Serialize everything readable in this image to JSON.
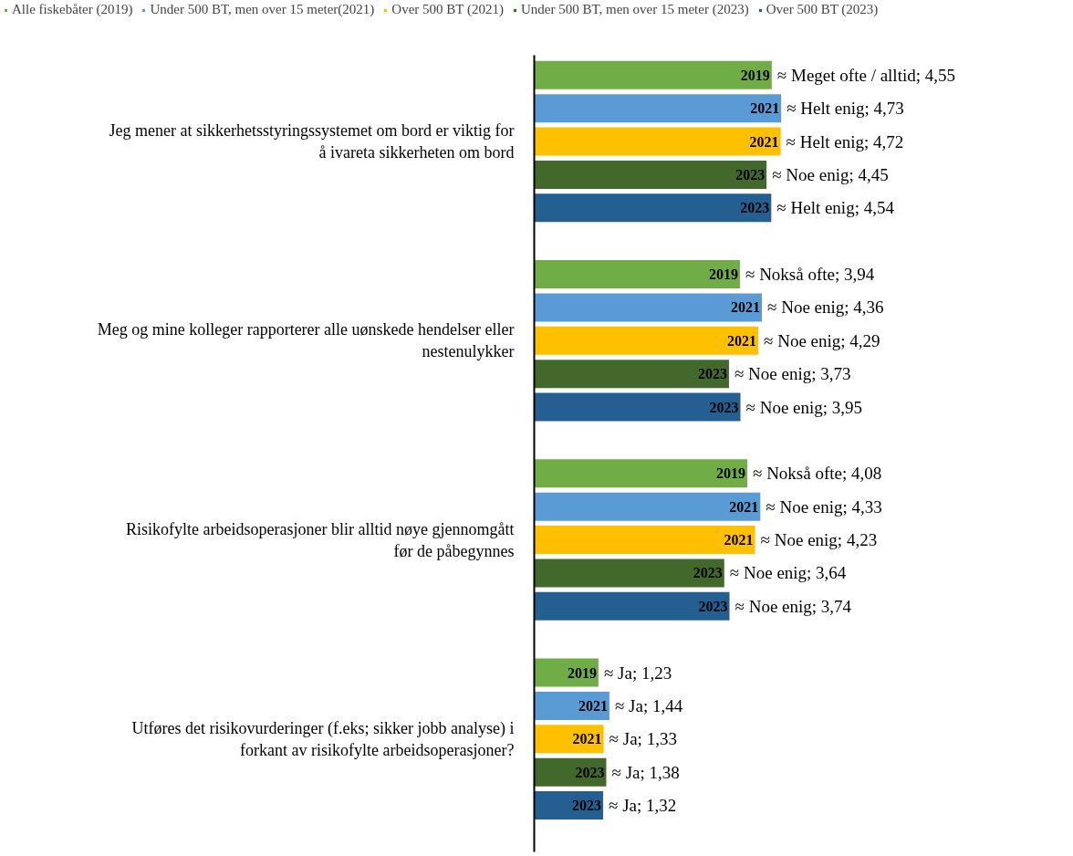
{
  "chart_data": {
    "type": "bar",
    "orientation": "horizontal",
    "legend": "top",
    "tick_labels": "y",
    "grid": false,
    "categories": [
      "Jeg mener at sikkerhetsstyringssystemet om bord er viktig for å ivareta sikkerheten om bord",
      "Meg og mine kolleger rapporterer alle uønskede hendelser eller nestenulykker",
      "Risikofylte arbeidsoperasjoner blir alltid nøye gjennomgått før de påbegynnes",
      "Utføres det risikovurderinger (f.eks; sikker jobb analyse) i forkant av risikofylte arbeidsoperasjoner?"
    ],
    "series": [
      {
        "name": "Alle fiskebåter (2019)",
        "color": "#70ad47",
        "values": [
          4.55,
          3.94,
          4.08,
          1.23
        ],
        "value_labels": [
          "2019 ≈ Meget ofte / alltid; 4,55",
          "2019 ≈ Nokså ofte; 3,94",
          "2019 ≈ Nokså ofte; 4,08",
          "2019 ≈ Ja; 1,23"
        ]
      },
      {
        "name": "Under 500 BT, men over 15 meter(2021)",
        "color": "#5b9bd5",
        "values": [
          4.73,
          4.36,
          4.33,
          1.44
        ],
        "value_labels": [
          "2021 ≈ Helt enig; 4,73",
          "2021 ≈ Noe enig; 4,36",
          "2021 ≈ Noe enig; 4,33",
          "2021 ≈ Ja; 1,44"
        ]
      },
      {
        "name": "Over 500 BT (2021)",
        "color": "#ffc000",
        "values": [
          4.72,
          4.29,
          4.23,
          1.33
        ],
        "value_labels": [
          "2021 ≈ Helt enig; 4,72",
          "2021 ≈ Noe enig; 4,29",
          "2021 ≈ Noe enig; 4,23",
          "2021 ≈ Ja; 1,33"
        ]
      },
      {
        "name": "Under 500 BT, men over 15 meter (2023)",
        "color": "#43682b",
        "values": [
          4.45,
          3.73,
          3.64,
          1.38
        ],
        "value_labels": [
          "2023 ≈ Noe enig; 4,45",
          "2023 ≈ Noe enig; 3,73",
          "2023 ≈ Noe enig; 3,64",
          "2023 ≈ Ja; 1,38"
        ]
      },
      {
        "name": "Over 500 BT (2023)",
        "color": "#255e91",
        "values": [
          4.54,
          3.95,
          3.74,
          1.32
        ],
        "value_labels": [
          "2023 ≈ Helt enig; 4,54",
          "2023 ≈ Noe enig; 3,95",
          "2023 ≈ Noe enig; 3,74",
          "2023 ≈ Ja; 1,32"
        ]
      }
    ]
  }
}
